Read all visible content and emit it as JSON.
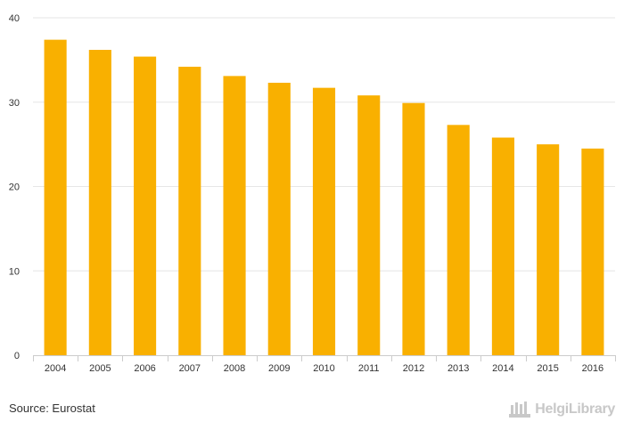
{
  "chart_data": {
    "type": "bar",
    "categories": [
      "2004",
      "2005",
      "2006",
      "2007",
      "2008",
      "2009",
      "2010",
      "2011",
      "2012",
      "2013",
      "2014",
      "2015",
      "2016"
    ],
    "values": [
      37.4,
      36.2,
      35.4,
      34.2,
      33.1,
      32.3,
      31.7,
      30.8,
      29.9,
      27.3,
      25.8,
      25.0,
      24.5
    ],
    "ylim": [
      0,
      40
    ],
    "yticks": [
      0,
      10,
      20,
      30,
      40
    ],
    "grid": true,
    "bar_color": "#f9b000",
    "grid_color": "#e6e6e6",
    "axis_color": "#cccccc"
  },
  "footer": {
    "source": "Source: Eurostat",
    "logo_text": "HelgiLibrary",
    "logo_icon": "helgilibrary-logo-icon"
  }
}
